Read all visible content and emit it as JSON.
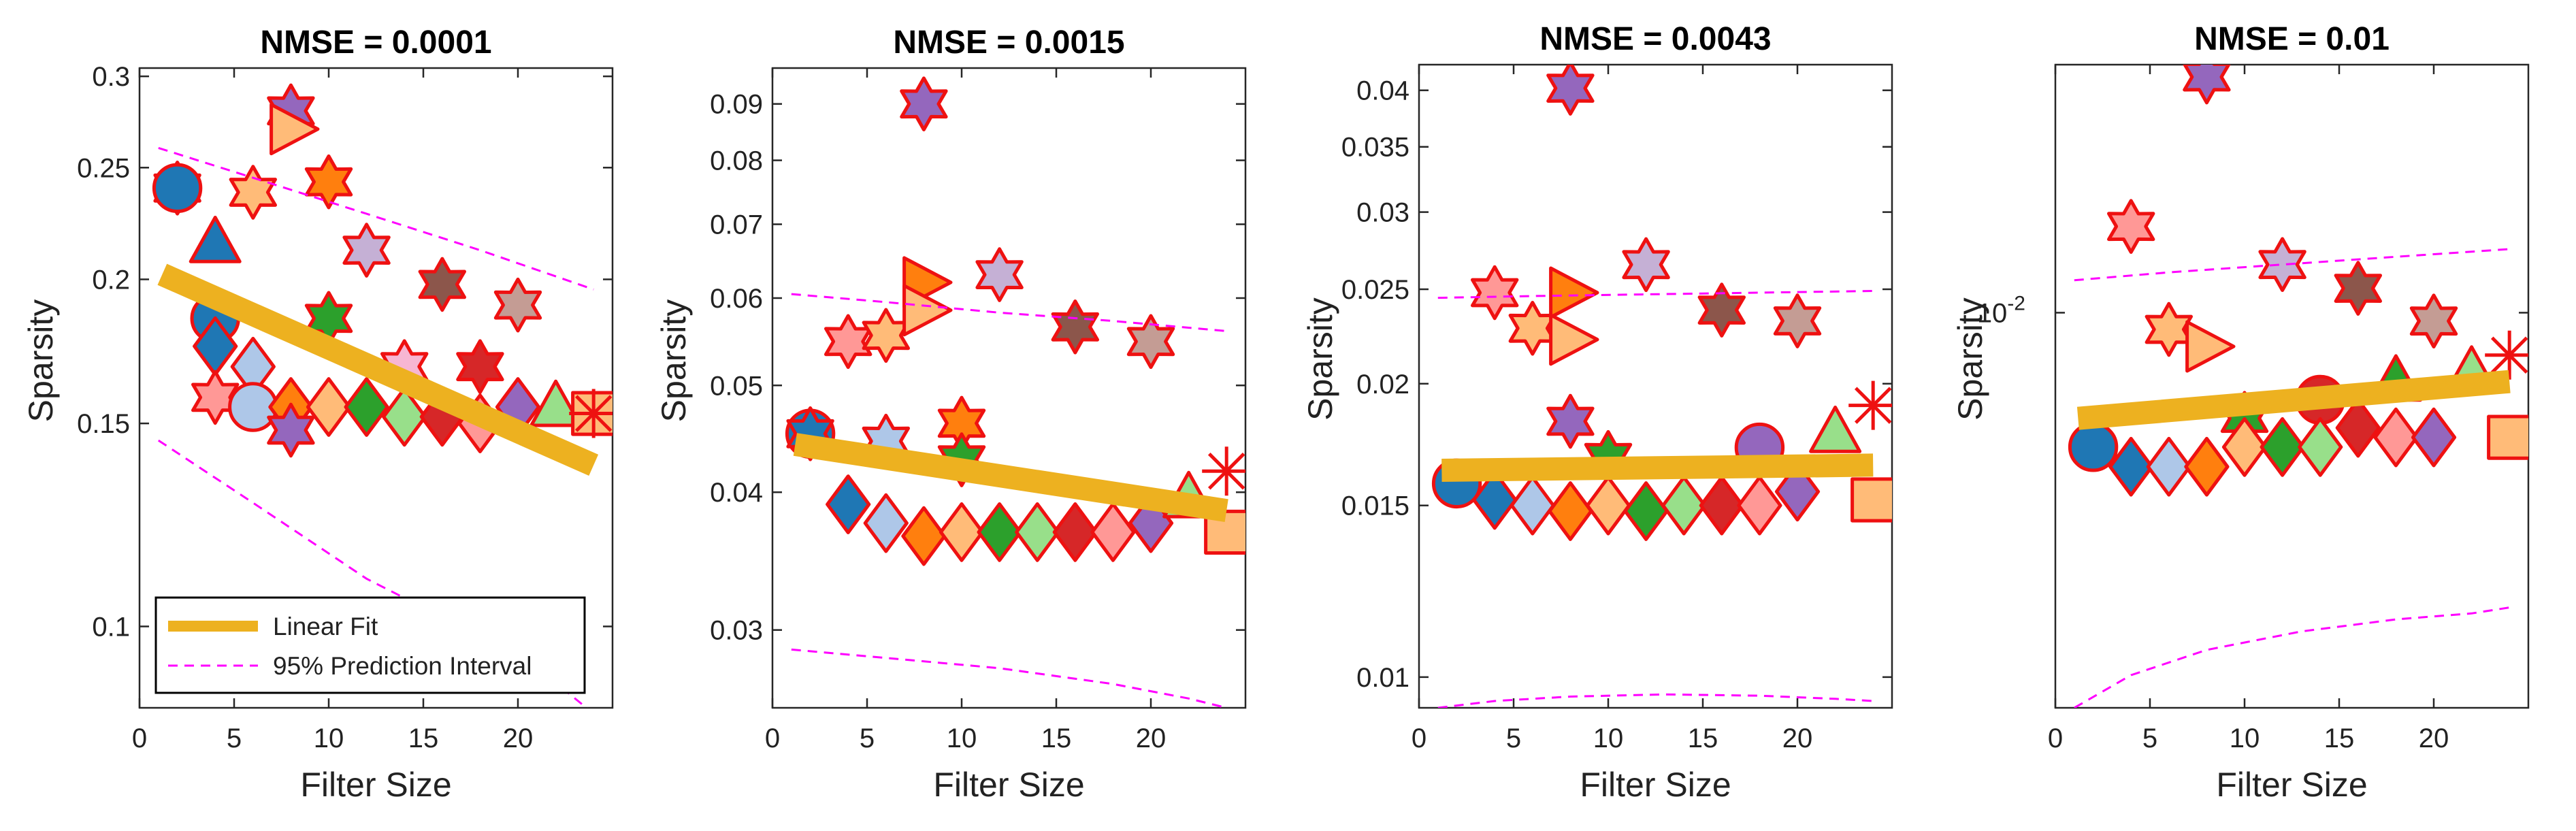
{
  "chart_data": [
    {
      "type": "scatter",
      "title": "NMSE = 0.0001",
      "xlabel": "Filter Size",
      "ylabel": "Sparsity",
      "xlim": [
        0,
        25
      ],
      "ylim": [
        0.085,
        0.305
      ],
      "yscale": "log",
      "xticks": [
        0,
        5,
        10,
        15,
        20
      ],
      "yticks": [
        0.1,
        0.15,
        0.2,
        0.25,
        0.3
      ],
      "ytick_labels": [
        "0.1",
        "0.15",
        "0.2",
        "0.25",
        "0.3"
      ],
      "fit": {
        "x": [
          1.2,
          24
        ],
        "y": [
          0.202,
          0.138
        ]
      },
      "pi_upper": {
        "x": [
          1,
          6,
          12,
          18,
          24
        ],
        "y": [
          0.26,
          0.245,
          0.228,
          0.212,
          0.196
        ]
      },
      "pi_lower": {
        "x": [
          1,
          6,
          12,
          18,
          22.5,
          24
        ],
        "y": [
          0.145,
          0.128,
          0.11,
          0.098,
          0.088,
          0.084
        ]
      },
      "legend": {
        "entries": [
          "Linear Fit",
          "95% Prediction Interval"
        ],
        "placement": "bottom-left"
      },
      "points": [
        {
          "x": 2,
          "y": 0.24,
          "m": "hexagram",
          "c": "#1f77b4"
        },
        {
          "x": 2,
          "y": 0.24,
          "m": "circle",
          "c": "#1f77b4"
        },
        {
          "x": 4,
          "y": 0.215,
          "m": "triangle",
          "c": "#1f77b4"
        },
        {
          "x": 4,
          "y": 0.185,
          "m": "circle",
          "c": "#1f77b4"
        },
        {
          "x": 4,
          "y": 0.175,
          "m": "diamond",
          "c": "#1f77b4"
        },
        {
          "x": 4,
          "y": 0.158,
          "m": "hexagram",
          "c": "#ff9896"
        },
        {
          "x": 6,
          "y": 0.238,
          "m": "hexagram",
          "c": "#ffbb78"
        },
        {
          "x": 6,
          "y": 0.168,
          "m": "diamond",
          "c": "#aec7e8"
        },
        {
          "x": 6,
          "y": 0.155,
          "m": "circle",
          "c": "#aec7e8"
        },
        {
          "x": 8,
          "y": 0.28,
          "m": "hexagram",
          "c": "#9467bd"
        },
        {
          "x": 8,
          "y": 0.27,
          "m": "triangle-right",
          "c": "#ffbb78"
        },
        {
          "x": 8,
          "y": 0.155,
          "m": "diamond",
          "c": "#ff7f0e"
        },
        {
          "x": 8,
          "y": 0.148,
          "m": "hexagram",
          "c": "#9467bd"
        },
        {
          "x": 10,
          "y": 0.243,
          "m": "hexagram",
          "c": "#ff7f0e"
        },
        {
          "x": 10,
          "y": 0.185,
          "m": "hexagram",
          "c": "#2ca02c"
        },
        {
          "x": 10,
          "y": 0.155,
          "m": "diamond",
          "c": "#ffbb78"
        },
        {
          "x": 12,
          "y": 0.212,
          "m": "hexagram",
          "c": "#c5b0d5"
        },
        {
          "x": 12,
          "y": 0.155,
          "m": "diamond",
          "c": "#2ca02c"
        },
        {
          "x": 14,
          "y": 0.168,
          "m": "hexagram",
          "c": "#f7b6d2"
        },
        {
          "x": 14,
          "y": 0.152,
          "m": "diamond",
          "c": "#98df8a"
        },
        {
          "x": 16,
          "y": 0.198,
          "m": "hexagram",
          "c": "#8c564b"
        },
        {
          "x": 16,
          "y": 0.152,
          "m": "diamond",
          "c": "#d62728"
        },
        {
          "x": 18,
          "y": 0.168,
          "m": "hexagram",
          "c": "#d62728"
        },
        {
          "x": 18,
          "y": 0.15,
          "m": "diamond",
          "c": "#ff9896"
        },
        {
          "x": 20,
          "y": 0.19,
          "m": "hexagram",
          "c": "#c49c94"
        },
        {
          "x": 20,
          "y": 0.155,
          "m": "diamond",
          "c": "#9467bd"
        },
        {
          "x": 22,
          "y": 0.155,
          "m": "triangle",
          "c": "#98df8a"
        },
        {
          "x": 24,
          "y": 0.153,
          "m": "square",
          "c": "#ffbb78"
        },
        {
          "x": 24,
          "y": 0.153,
          "m": "asterisk",
          "c": "#ee1111"
        }
      ]
    },
    {
      "type": "scatter",
      "title": "NMSE = 0.0015",
      "xlabel": "Filter Size",
      "ylabel": "Sparsity",
      "xlim": [
        0,
        25
      ],
      "ylim": [
        0.0255,
        0.097
      ],
      "yscale": "log",
      "xticks": [
        0,
        5,
        10,
        15,
        20
      ],
      "yticks": [
        0.03,
        0.04,
        0.05,
        0.06,
        0.07,
        0.08,
        0.09
      ],
      "ytick_labels": [
        "0.03",
        "0.04",
        "0.05",
        "0.06",
        "0.07",
        "0.08",
        "0.09"
      ],
      "fit": {
        "x": [
          1.2,
          24
        ],
        "y": [
          0.0442,
          0.0385
        ]
      },
      "pi_upper": {
        "x": [
          1,
          6,
          12,
          18,
          24
        ],
        "y": [
          0.0605,
          0.0595,
          0.0582,
          0.0572,
          0.056
        ]
      },
      "pi_lower": {
        "x": [
          1,
          6,
          12,
          18,
          22,
          24
        ],
        "y": [
          0.0288,
          0.0283,
          0.0277,
          0.0268,
          0.026,
          0.0255
        ]
      },
      "points": [
        {
          "x": 2,
          "y": 0.0452,
          "m": "circle",
          "c": "#1f77b4"
        },
        {
          "x": 2,
          "y": 0.0452,
          "m": "hexagram",
          "c": "#1f77b4"
        },
        {
          "x": 4,
          "y": 0.0548,
          "m": "hexagram",
          "c": "#ff9896"
        },
        {
          "x": 4,
          "y": 0.039,
          "m": "diamond",
          "c": "#1f77b4"
        },
        {
          "x": 6,
          "y": 0.0555,
          "m": "hexagram",
          "c": "#ffbb78"
        },
        {
          "x": 6,
          "y": 0.0445,
          "m": "hexagram",
          "c": "#aec7e8"
        },
        {
          "x": 6,
          "y": 0.0375,
          "m": "diamond",
          "c": "#aec7e8"
        },
        {
          "x": 8,
          "y": 0.09,
          "m": "hexagram",
          "c": "#9467bd"
        },
        {
          "x": 8,
          "y": 0.062,
          "m": "triangle-right",
          "c": "#ff7f0e"
        },
        {
          "x": 8,
          "y": 0.0585,
          "m": "triangle-right",
          "c": "#ffbb78"
        },
        {
          "x": 8,
          "y": 0.0365,
          "m": "diamond",
          "c": "#ff7f0e"
        },
        {
          "x": 10,
          "y": 0.0462,
          "m": "hexagram",
          "c": "#ff7f0e"
        },
        {
          "x": 10,
          "y": 0.0428,
          "m": "hexagram",
          "c": "#2ca02c"
        },
        {
          "x": 10,
          "y": 0.0368,
          "m": "diamond",
          "c": "#ffbb78"
        },
        {
          "x": 12,
          "y": 0.063,
          "m": "hexagram",
          "c": "#c5b0d5"
        },
        {
          "x": 12,
          "y": 0.0368,
          "m": "diamond",
          "c": "#2ca02c"
        },
        {
          "x": 14,
          "y": 0.0368,
          "m": "diamond",
          "c": "#98df8a"
        },
        {
          "x": 16,
          "y": 0.0565,
          "m": "hexagram",
          "c": "#8c564b"
        },
        {
          "x": 16,
          "y": 0.0368,
          "m": "diamond",
          "c": "#d62728"
        },
        {
          "x": 18,
          "y": 0.0368,
          "m": "diamond",
          "c": "#ff9896"
        },
        {
          "x": 20,
          "y": 0.0548,
          "m": "hexagram",
          "c": "#c49c94"
        },
        {
          "x": 20,
          "y": 0.0375,
          "m": "diamond",
          "c": "#9467bd"
        },
        {
          "x": 22,
          "y": 0.0395,
          "m": "triangle",
          "c": "#98df8a"
        },
        {
          "x": 24,
          "y": 0.0418,
          "m": "asterisk",
          "c": "#ee1111"
        },
        {
          "x": 24,
          "y": 0.0368,
          "m": "square",
          "c": "#ffbb78"
        }
      ]
    },
    {
      "type": "scatter",
      "title": "NMSE = 0.0043",
      "xlabel": "Filter Size",
      "ylabel": "Sparsity",
      "xlim": [
        0,
        25
      ],
      "ylim": [
        0.0093,
        0.0425
      ],
      "yscale": "log",
      "xticks": [
        0,
        5,
        10,
        15,
        20
      ],
      "yticks": [
        0.01,
        0.015,
        0.02,
        0.025,
        0.03,
        0.035,
        0.04
      ],
      "ytick_labels": [
        "0.01",
        "0.015",
        "0.02",
        "0.025",
        "0.03",
        "0.035",
        "0.04"
      ],
      "fit": {
        "x": [
          1.2,
          24
        ],
        "y": [
          0.0163,
          0.0165
        ]
      },
      "pi_upper": {
        "x": [
          1,
          6,
          12,
          18,
          24
        ],
        "y": [
          0.0245,
          0.0246,
          0.0247,
          0.0248,
          0.0249
        ]
      },
      "pi_lower": {
        "x": [
          1,
          4,
          8,
          13,
          18,
          22,
          24
        ],
        "y": [
          0.0093,
          0.00945,
          0.00955,
          0.0096,
          0.00957,
          0.0095,
          0.00945
        ]
      },
      "points": [
        {
          "x": 2,
          "y": 0.0158,
          "m": "circle",
          "c": "#1f77b4"
        },
        {
          "x": 4,
          "y": 0.0248,
          "m": "hexagram",
          "c": "#ff9896"
        },
        {
          "x": 4,
          "y": 0.0152,
          "m": "diamond",
          "c": "#1f77b4"
        },
        {
          "x": 6,
          "y": 0.0228,
          "m": "hexagram",
          "c": "#ffbb78"
        },
        {
          "x": 6,
          "y": 0.015,
          "m": "diamond",
          "c": "#aec7e8"
        },
        {
          "x": 8,
          "y": 0.0402,
          "m": "hexagram",
          "c": "#9467bd"
        },
        {
          "x": 8,
          "y": 0.0248,
          "m": "triangle-right",
          "c": "#ff7f0e"
        },
        {
          "x": 8,
          "y": 0.0222,
          "m": "triangle-right",
          "c": "#ffbb78"
        },
        {
          "x": 8,
          "y": 0.0183,
          "m": "hexagram",
          "c": "#9467bd"
        },
        {
          "x": 8,
          "y": 0.0148,
          "m": "diamond",
          "c": "#ff7f0e"
        },
        {
          "x": 10,
          "y": 0.0168,
          "m": "hexagram",
          "c": "#2ca02c"
        },
        {
          "x": 10,
          "y": 0.015,
          "m": "diamond",
          "c": "#ffbb78"
        },
        {
          "x": 12,
          "y": 0.0265,
          "m": "hexagram",
          "c": "#c5b0d5"
        },
        {
          "x": 12,
          "y": 0.0148,
          "m": "diamond",
          "c": "#2ca02c"
        },
        {
          "x": 14,
          "y": 0.015,
          "m": "diamond",
          "c": "#98df8a"
        },
        {
          "x": 16,
          "y": 0.0238,
          "m": "hexagram",
          "c": "#8c564b"
        },
        {
          "x": 16,
          "y": 0.015,
          "m": "diamond",
          "c": "#d62728"
        },
        {
          "x": 18,
          "y": 0.0172,
          "m": "circle",
          "c": "#9467bd"
        },
        {
          "x": 18,
          "y": 0.015,
          "m": "diamond",
          "c": "#ff9896"
        },
        {
          "x": 20,
          "y": 0.0232,
          "m": "hexagram",
          "c": "#c49c94"
        },
        {
          "x": 20,
          "y": 0.0155,
          "m": "diamond",
          "c": "#9467bd"
        },
        {
          "x": 22,
          "y": 0.0178,
          "m": "triangle",
          "c": "#98df8a"
        },
        {
          "x": 24,
          "y": 0.019,
          "m": "asterisk",
          "c": "#ee1111"
        },
        {
          "x": 24,
          "y": 0.0152,
          "m": "square",
          "c": "#ffbb78"
        }
      ]
    },
    {
      "type": "scatter",
      "title": "NMSE = 0.01",
      "xlabel": "Filter Size",
      "ylabel": "Sparsity",
      "xlim": [
        0,
        25
      ],
      "ylim": [
        0.0062,
        0.0135
      ],
      "yscale": "log",
      "xticks": [
        0,
        5,
        10,
        15,
        20
      ],
      "yticks": [
        0.01
      ],
      "ytick_labels": [
        "10^-2"
      ],
      "fit": {
        "x": [
          1.2,
          24
        ],
        "y": [
          0.0088,
          0.0092
        ]
      },
      "pi_upper": {
        "x": [
          1,
          6,
          12,
          18,
          24
        ],
        "y": [
          0.0104,
          0.0105,
          0.0106,
          0.0107,
          0.0108
        ]
      },
      "pi_lower": {
        "x": [
          1,
          4,
          8,
          13,
          18,
          22,
          24
        ],
        "y": [
          0.0062,
          0.00645,
          0.00665,
          0.0068,
          0.0069,
          0.00695,
          0.007
        ]
      },
      "points": [
        {
          "x": 2,
          "y": 0.0085,
          "m": "circle",
          "c": "#1f77b4"
        },
        {
          "x": 4,
          "y": 0.0111,
          "m": "hexagram",
          "c": "#ff9896"
        },
        {
          "x": 4,
          "y": 0.0083,
          "m": "diamond",
          "c": "#1f77b4"
        },
        {
          "x": 6,
          "y": 0.0098,
          "m": "hexagram",
          "c": "#ffbb78"
        },
        {
          "x": 6,
          "y": 0.0083,
          "m": "diamond",
          "c": "#aec7e8"
        },
        {
          "x": 8,
          "y": 0.0133,
          "m": "hexagram",
          "c": "#9467bd"
        },
        {
          "x": 8,
          "y": 0.0096,
          "m": "triangle-right",
          "c": "#ffbb78"
        },
        {
          "x": 8,
          "y": 0.0083,
          "m": "diamond",
          "c": "#ff7f0e"
        },
        {
          "x": 10,
          "y": 0.0088,
          "m": "hexagram",
          "c": "#2ca02c"
        },
        {
          "x": 10,
          "y": 0.0085,
          "m": "diamond",
          "c": "#ffbb78"
        },
        {
          "x": 12,
          "y": 0.0106,
          "m": "hexagram",
          "c": "#c5b0d5"
        },
        {
          "x": 12,
          "y": 0.0085,
          "m": "diamond",
          "c": "#2ca02c"
        },
        {
          "x": 14,
          "y": 0.009,
          "m": "circle",
          "c": "#d62728"
        },
        {
          "x": 14,
          "y": 0.0085,
          "m": "diamond",
          "c": "#98df8a"
        },
        {
          "x": 16,
          "y": 0.0103,
          "m": "hexagram",
          "c": "#8c564b"
        },
        {
          "x": 16,
          "y": 0.0087,
          "m": "diamond",
          "c": "#d62728"
        },
        {
          "x": 18,
          "y": 0.0092,
          "m": "triangle",
          "c": "#2ca02c"
        },
        {
          "x": 18,
          "y": 0.0086,
          "m": "diamond",
          "c": "#ff9896"
        },
        {
          "x": 20,
          "y": 0.0099,
          "m": "hexagram",
          "c": "#c49c94"
        },
        {
          "x": 20,
          "y": 0.0086,
          "m": "diamond",
          "c": "#9467bd"
        },
        {
          "x": 22,
          "y": 0.0093,
          "m": "triangle",
          "c": "#98df8a"
        },
        {
          "x": 24,
          "y": 0.0095,
          "m": "asterisk",
          "c": "#ee1111"
        },
        {
          "x": 24,
          "y": 0.0086,
          "m": "square",
          "c": "#ffbb78"
        }
      ]
    }
  ],
  "colors": {
    "fit": "#edb120",
    "prediction_interval": "#ff00ff",
    "marker_edge": "#ee1111",
    "axis": "#262626"
  }
}
